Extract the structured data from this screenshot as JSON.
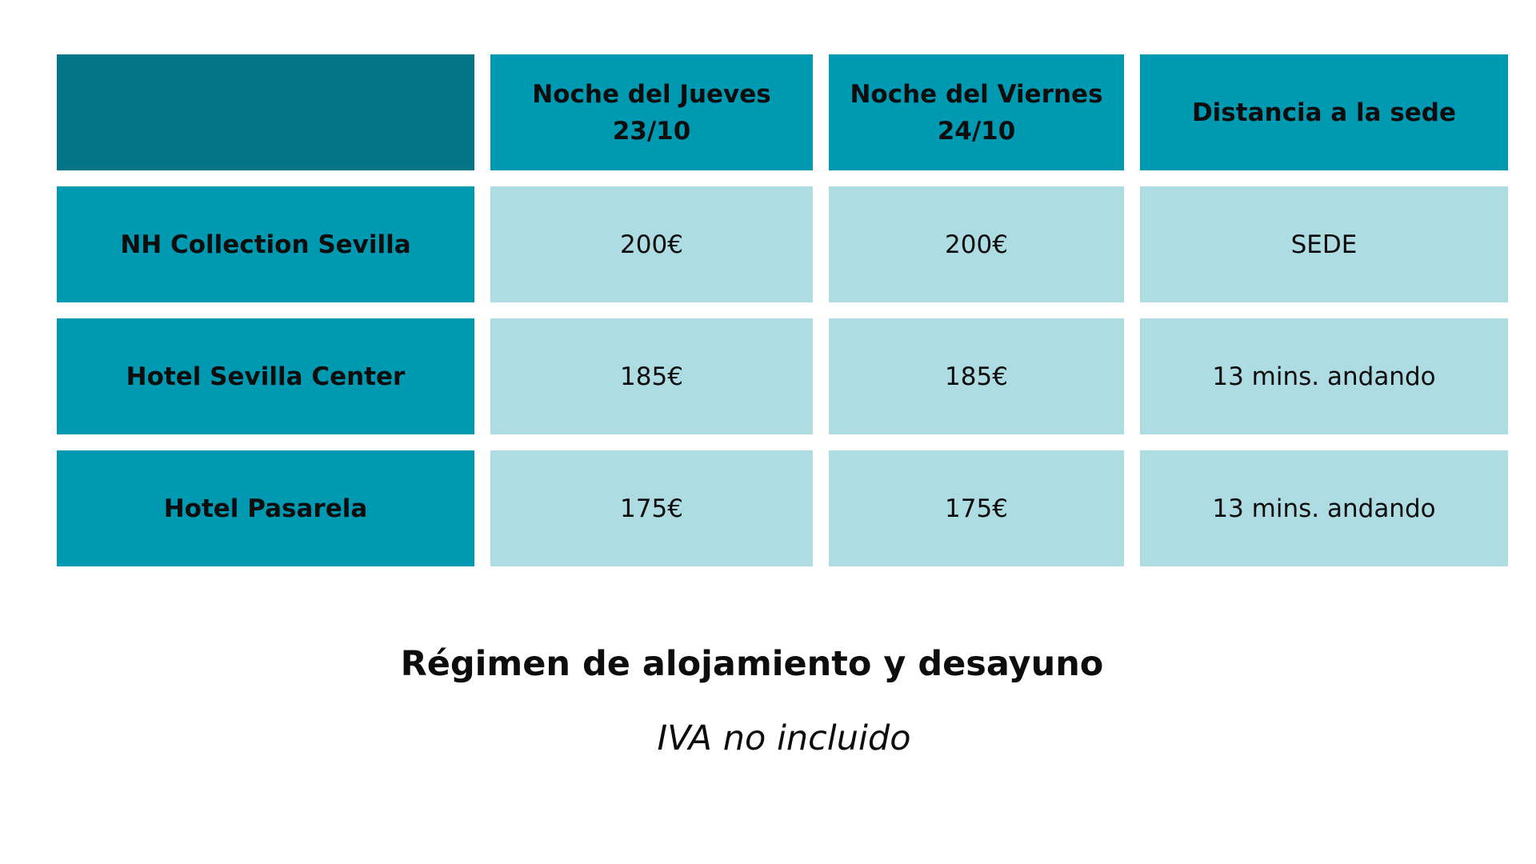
{
  "table": {
    "columns": [
      {
        "line1": "Noche del Jueves",
        "line2": "23/10"
      },
      {
        "line1": "Noche del Viernes",
        "line2": "24/10"
      },
      {
        "line1": "Distancia a la sede",
        "line2": ""
      }
    ],
    "rows": [
      {
        "hotel": "NH Collection Sevilla",
        "jueves": "200€",
        "viernes": "200€",
        "distancia": "SEDE"
      },
      {
        "hotel": "Hotel Sevilla Center",
        "jueves": "185€",
        "viernes": "185€",
        "distancia": "13 mins. andando"
      },
      {
        "hotel": "Hotel Pasarela",
        "jueves": "175€",
        "viernes": "175€",
        "distancia": "13 mins. andando"
      }
    ]
  },
  "footer": {
    "title": "Régimen de alojamiento y desayuno",
    "note": "IVA no incluido"
  },
  "colors": {
    "corner": "#027686",
    "header": "#0099b2",
    "cell": "#addce3"
  }
}
